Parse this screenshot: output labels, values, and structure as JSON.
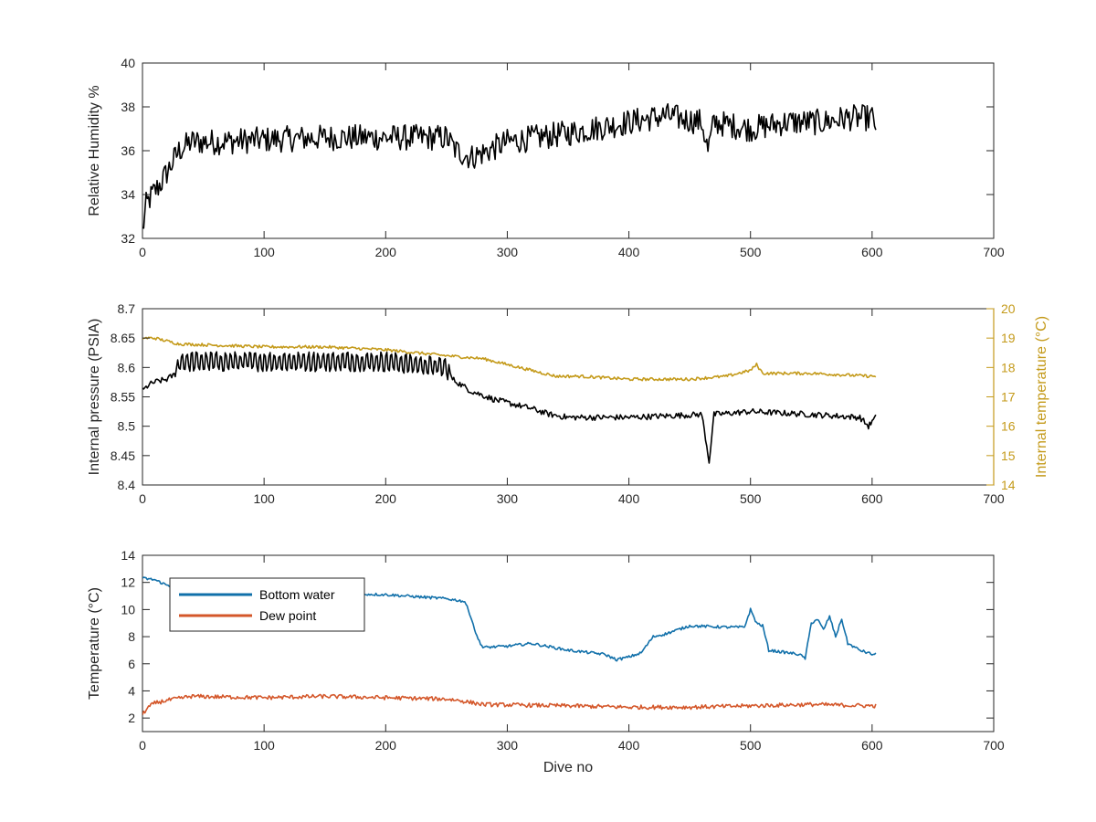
{
  "figure": {
    "xlabel": "Dive no"
  },
  "colors": {
    "black": "#000000",
    "temp": "#C49A1A",
    "bottom": "#1170AA",
    "dew": "#D4572A",
    "axis": "#262626"
  },
  "chart_data": [
    {
      "type": "line",
      "ylabel": "Relative Humidity %",
      "xlim": [
        0,
        700
      ],
      "ylim": [
        32,
        40
      ],
      "xticks": [
        0,
        100,
        200,
        300,
        400,
        500,
        600,
        700
      ],
      "yticks": [
        32,
        34,
        36,
        38,
        40
      ],
      "grid": false,
      "series": [
        {
          "color": "#000000",
          "noise": 0.6,
          "x": [
            0,
            3,
            8,
            15,
            22,
            30,
            40,
            60,
            100,
            150,
            200,
            250,
            258,
            270,
            280,
            300,
            350,
            400,
            430,
            460,
            465,
            470,
            500,
            530,
            560,
            580,
            600,
            603
          ],
          "y": [
            32.3,
            33.5,
            34.0,
            34.5,
            35.2,
            36.0,
            36.4,
            36.4,
            36.5,
            36.6,
            36.6,
            36.6,
            36.0,
            35.7,
            35.9,
            36.4,
            36.8,
            37.3,
            37.6,
            37.3,
            36.0,
            37.3,
            37.0,
            37.3,
            37.3,
            37.5,
            37.5,
            37.2
          ]
        }
      ]
    },
    {
      "type": "line",
      "ylabel": "Internal pressure (PSIA)",
      "ylabel_right": "Internal temperature (°C)",
      "xlim": [
        0,
        700
      ],
      "ylim": [
        8.4,
        8.7
      ],
      "ylim_right": [
        14,
        20
      ],
      "xticks": [
        0,
        100,
        200,
        300,
        400,
        500,
        600,
        700
      ],
      "yticks": [
        8.4,
        8.45,
        8.5,
        8.55,
        8.6,
        8.65,
        8.7
      ],
      "yticks_right": [
        14,
        15,
        16,
        17,
        18,
        19,
        20
      ],
      "grid": false,
      "series": [
        {
          "axis": "left",
          "color": "#000000",
          "noise": 0.005,
          "oscillate": {
            "from": 28,
            "to": 252,
            "period": 4,
            "amp": 0.012
          },
          "x": [
            0,
            5,
            10,
            20,
            28,
            30,
            100,
            200,
            250,
            255,
            270,
            290,
            300,
            320,
            335,
            350,
            400,
            460,
            466,
            470,
            500,
            550,
            590,
            597,
            603
          ],
          "y": [
            8.56,
            8.57,
            8.575,
            8.58,
            8.59,
            8.61,
            8.61,
            8.61,
            8.6,
            8.58,
            8.56,
            8.545,
            8.54,
            8.53,
            8.52,
            8.515,
            8.515,
            8.52,
            8.44,
            8.52,
            8.525,
            8.52,
            8.515,
            8.5,
            8.515
          ]
        },
        {
          "axis": "right",
          "color": "#C49A1A",
          "noise": 0.05,
          "x": [
            0,
            10,
            30,
            100,
            150,
            200,
            250,
            280,
            300,
            330,
            340,
            360,
            400,
            450,
            480,
            490,
            500,
            505,
            510,
            520,
            550,
            600,
            603
          ],
          "y": [
            19.0,
            19.0,
            18.8,
            18.7,
            18.7,
            18.6,
            18.4,
            18.3,
            18.1,
            17.8,
            17.7,
            17.7,
            17.6,
            17.6,
            17.7,
            17.8,
            17.9,
            18.1,
            17.8,
            17.8,
            17.8,
            17.7,
            17.7
          ]
        }
      ]
    },
    {
      "type": "line",
      "ylabel": "Temperature (°C)",
      "xlabel": "Dive no",
      "xlim": [
        0,
        700
      ],
      "ylim": [
        1,
        14
      ],
      "xticks": [
        0,
        100,
        200,
        300,
        400,
        500,
        600,
        700
      ],
      "yticks": [
        2,
        4,
        6,
        8,
        10,
        12,
        14
      ],
      "grid": false,
      "legend": "top-left",
      "series": [
        {
          "name": "Bottom water",
          "color": "#1170AA",
          "noise": 0.1,
          "x": [
            0,
            10,
            20,
            40,
            100,
            150,
            200,
            250,
            265,
            270,
            275,
            280,
            300,
            320,
            350,
            380,
            390,
            400,
            410,
            420,
            430,
            450,
            480,
            495,
            500,
            505,
            510,
            515,
            540,
            545,
            550,
            555,
            560,
            565,
            570,
            575,
            580,
            590,
            600,
            603
          ],
          "y": [
            12.3,
            12.2,
            11.8,
            11.5,
            11.3,
            11.2,
            11.1,
            10.8,
            10.6,
            9.5,
            8.0,
            7.2,
            7.3,
            7.5,
            7.0,
            6.7,
            6.3,
            6.5,
            6.8,
            8.0,
            8.2,
            8.8,
            8.7,
            8.7,
            10.0,
            9.0,
            8.8,
            7.0,
            6.7,
            6.4,
            9.0,
            9.3,
            8.5,
            9.5,
            8.0,
            9.3,
            7.5,
            7.0,
            6.7,
            6.7
          ]
        },
        {
          "name": "Dew point",
          "color": "#D4572A",
          "noise": 0.15,
          "x": [
            0,
            5,
            10,
            20,
            40,
            100,
            150,
            200,
            250,
            260,
            280,
            350,
            400,
            450,
            500,
            550,
            600,
            603
          ],
          "y": [
            2.3,
            2.8,
            3.1,
            3.3,
            3.6,
            3.5,
            3.6,
            3.5,
            3.4,
            3.3,
            3.0,
            2.9,
            2.8,
            2.8,
            2.9,
            3.0,
            2.9,
            2.9
          ]
        }
      ]
    }
  ]
}
